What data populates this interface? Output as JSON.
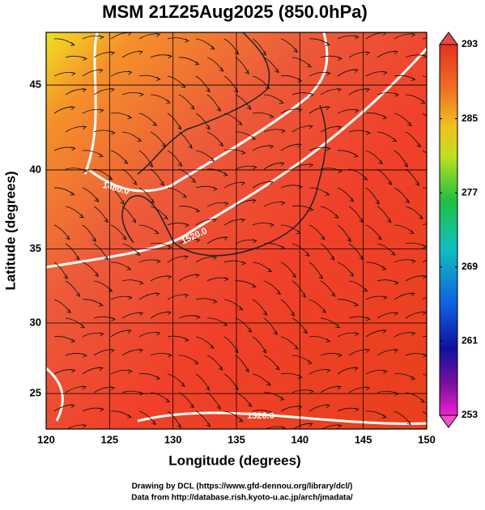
{
  "title": "MSM 21Z25Aug2025 (850.0hPa)",
  "x_axis": {
    "label": "Longitude (degrees)",
    "lim": [
      120,
      150
    ],
    "ticks": [
      120,
      125,
      130,
      135,
      140,
      145,
      150
    ]
  },
  "y_axis": {
    "label": "Latitude  (degrees)",
    "lim": [
      22.4,
      47.9
    ],
    "ticks": [
      25,
      30,
      35,
      40,
      45
    ]
  },
  "colorbar": {
    "lim": [
      253,
      293
    ],
    "ticks": [
      253,
      261,
      269,
      277,
      285,
      293
    ]
  },
  "contour_labels": [
    "1480.0",
    "1520.0",
    "1520.0"
  ],
  "footer": [
    "Drawing by DCL (https://www.gfd-dennou.org/library/dcl/)",
    "Data from http://database.rish.kyoto-u.ac.jp/arch/jmadata/"
  ]
}
